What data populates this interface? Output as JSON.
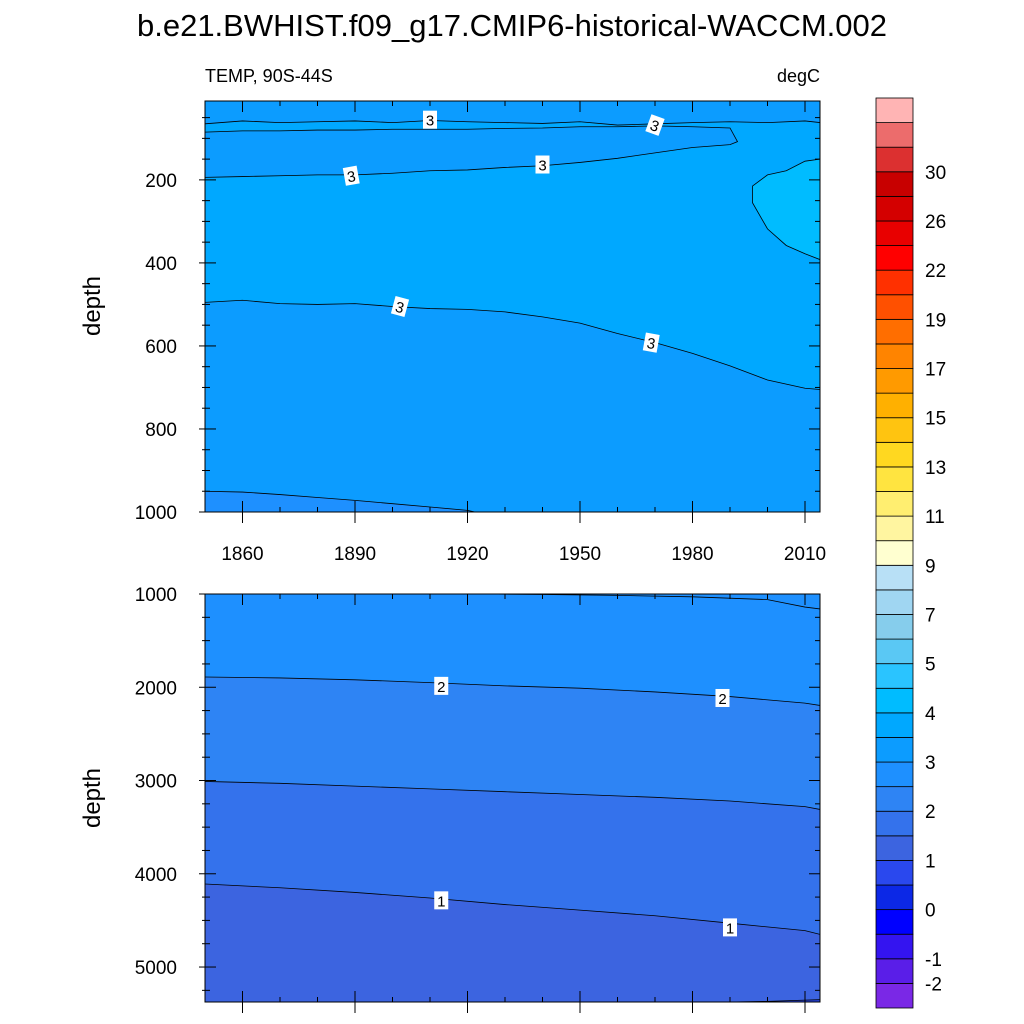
{
  "chart_data": {
    "type": "contour",
    "title": "b.e21.BWHIST.f09_g17.CMIP6-historical-WACCM.002",
    "subtitle_left": "TEMP, 90S-44S",
    "subtitle_right": "degC",
    "xlim": [
      1850,
      2014
    ],
    "x_ticks": [
      1860,
      1890,
      1920,
      1950,
      1980,
      2010
    ],
    "x_tick_labels": [
      "1860",
      "1890",
      "1920",
      "1950",
      "1980",
      "2010"
    ],
    "colorbar": {
      "levels": [
        -3,
        -2,
        -1,
        -0.5,
        0,
        0.5,
        1,
        1.5,
        2,
        2.5,
        3,
        3.5,
        4,
        4.5,
        5,
        6,
        7,
        8,
        9,
        10,
        11,
        12,
        13,
        14,
        15,
        16,
        17,
        18,
        19,
        20,
        22,
        24,
        26,
        28,
        30,
        32,
        34
      ],
      "labels": [
        "30",
        "26",
        "22",
        "19",
        "17",
        "15",
        "13",
        "11",
        "9",
        "7",
        "5",
        "4",
        "3",
        "2",
        "1",
        "0",
        "-1",
        "-2"
      ],
      "label_values": [
        30,
        26,
        22,
        19,
        17,
        15,
        13,
        11,
        9,
        7,
        5,
        4,
        3,
        2,
        1,
        0,
        -1,
        -2
      ],
      "colors": [
        "#7a28e6",
        "#5a1ee8",
        "#3414f0",
        "#0000ff",
        "#0c28e6",
        "#2a48ee",
        "#3c64e0",
        "#3472ec",
        "#2e84f4",
        "#1e90ff",
        "#0c9cff",
        "#00a8ff",
        "#00bcff",
        "#2ac4ff",
        "#5ac8f4",
        "#86cdec",
        "#a0d6f2",
        "#b8e0f6",
        "#ffffd0",
        "#fff5a0",
        "#ffee70",
        "#ffe440",
        "#ffd820",
        "#ffc410",
        "#ffb000",
        "#ff9a00",
        "#ff8400",
        "#ff6e00",
        "#ff5000",
        "#ff3000",
        "#ff0000",
        "#e80000",
        "#d40000",
        "#c80000",
        "#dc3030",
        "#ec6c6c",
        "#ffb4b4"
      ]
    },
    "panels": [
      {
        "ylabel": "depth",
        "ylim": [
          1000,
          10
        ],
        "y_ticks": [
          200,
          400,
          600,
          800,
          1000
        ],
        "y_tick_labels": [
          "200",
          "400",
          "600",
          "800",
          "1000"
        ],
        "regions": [
          {
            "color": "#0c9cff",
            "note": "background 2.5-3 degC"
          },
          {
            "color": "#00a8ff",
            "bounded_by": [
              "upper_3",
              "mid_3"
            ]
          },
          {
            "color": "#0c9cff",
            "bounded_by": [
              "tongue_3"
            ]
          },
          {
            "color": "#00bcff",
            "bounded_by": [
              "patch_35"
            ]
          },
          {
            "color": "#1e90ff",
            "below": "deep_25"
          }
        ],
        "contours": [
          {
            "id": "upper_3",
            "level": 3,
            "x": [
              1850,
              1860,
              1870,
              1880,
              1890,
              1900,
              1910,
              1920,
              1930,
              1940,
              1950,
              1960,
              1970,
              1980,
              1990,
              2000,
              2010,
              2014
            ],
            "y": [
              65,
              58,
              62,
              60,
              58,
              62,
              57,
              60,
              62,
              64,
              60,
              68,
              65,
              62,
              60,
              62,
              58,
              62
            ]
          },
          {
            "id": "tongue_3",
            "level": 3,
            "x": [
              1850,
              1860,
              1870,
              1880,
              1890,
              1900,
              1910,
              1920,
              1930,
              1940,
              1950,
              1960,
              1970,
              1980,
              1990,
              1992,
              1990,
              1980,
              1970,
              1960,
              1950,
              1940,
              1930,
              1920,
              1910,
              1900,
              1890,
              1880,
              1870,
              1860,
              1850
            ],
            "y": [
              85,
              82,
              82,
              80,
              80,
              78,
              78,
              78,
              76,
              75,
              72,
              72,
              70,
              72,
              75,
              108,
              115,
              122,
              135,
              148,
              158,
              166,
              170,
              176,
              178,
              184,
              188,
              188,
              190,
              192,
              194
            ]
          },
          {
            "id": "mid_3",
            "level": 3,
            "x": [
              1850,
              1860,
              1870,
              1880,
              1890,
              1900,
              1910,
              1920,
              1930,
              1940,
              1950,
              1960,
              1970,
              1980,
              1990,
              2000,
              2010,
              2014
            ],
            "y": [
              495,
              490,
              498,
              500,
              498,
              505,
              510,
              512,
              518,
              530,
              545,
              570,
              592,
              618,
              648,
              682,
              702,
              705
            ]
          },
          {
            "id": "patch_35",
            "level": 3.5,
            "x": [
              2014,
              2010,
              2005,
              2000,
              1996,
              1996,
              2000,
              2005,
              2010,
              2014
            ],
            "y": [
              150,
              155,
              178,
              188,
              215,
              255,
              318,
              358,
              378,
              392
            ]
          },
          {
            "id": "deep_25",
            "level": 2.5,
            "x": [
              1850,
              1860,
              1870,
              1880,
              1890,
              1900,
              1910,
              1920,
              1922
            ],
            "y": [
              950,
              952,
              958,
              965,
              972,
              980,
              988,
              996,
              1000
            ]
          }
        ],
        "labels": [
          {
            "text": "3",
            "x": 1910,
            "y": 55,
            "angle": 0
          },
          {
            "text": "3",
            "x": 1970,
            "y": 68,
            "angle": 20
          },
          {
            "text": "3",
            "x": 1889,
            "y": 190,
            "angle": -10
          },
          {
            "text": "3",
            "x": 1940,
            "y": 163,
            "angle": 0
          },
          {
            "text": "3",
            "x": 1902,
            "y": 505,
            "angle": 15
          },
          {
            "text": "3",
            "x": 1969,
            "y": 592,
            "angle": 10
          }
        ]
      },
      {
        "ylabel": "depth",
        "ylim": [
          5375,
          1000
        ],
        "y_ticks": [
          1000,
          2000,
          3000,
          4000,
          5000
        ],
        "y_tick_labels": [
          "1000",
          "2000",
          "3000",
          "4000",
          "5000"
        ],
        "regions": [
          {
            "color": "#1e90ff",
            "note": "background 2-2.5 degC"
          },
          {
            "color": "#2e84f4",
            "below": "c2"
          },
          {
            "color": "#3472ec",
            "below": "c15"
          },
          {
            "color": "#3c64e0",
            "below": "c1"
          },
          {
            "color": "#2a48ee",
            "below": "c05"
          }
        ],
        "contours": [
          {
            "id": "c25",
            "level": 2.5,
            "x": [
              1925,
              1940,
              1960,
              1980,
              2000,
              2010,
              2014
            ],
            "y": [
              1000,
              1005,
              1015,
              1030,
              1060,
              1140,
              1160
            ]
          },
          {
            "id": "c2",
            "level": 2,
            "x": [
              1850,
              1870,
              1890,
              1910,
              1930,
              1950,
              1970,
              1990,
              2010,
              2014
            ],
            "y": [
              1890,
              1900,
              1920,
              1950,
              1985,
              2010,
              2050,
              2100,
              2170,
              2195
            ]
          },
          {
            "id": "c15",
            "level": 1.5,
            "x": [
              1850,
              1870,
              1890,
              1910,
              1930,
              1950,
              1970,
              1990,
              2010,
              2014
            ],
            "y": [
              3010,
              3030,
              3060,
              3090,
              3120,
              3150,
              3180,
              3220,
              3280,
              3310
            ]
          },
          {
            "id": "c1",
            "level": 1,
            "x": [
              1850,
              1870,
              1890,
              1910,
              1930,
              1950,
              1970,
              1990,
              2010,
              2014
            ],
            "y": [
              4110,
              4150,
              4200,
              4260,
              4330,
              4390,
              4450,
              4530,
              4610,
              4650
            ]
          },
          {
            "id": "c05",
            "level": 0.5,
            "x": [
              1990,
              2000,
              2010,
              2014
            ],
            "y": [
              5375,
              5368,
              5355,
              5350
            ]
          }
        ],
        "labels": [
          {
            "text": "2",
            "x": 1913,
            "y": 1985,
            "angle": 0
          },
          {
            "text": "2",
            "x": 1988,
            "y": 2115,
            "angle": 0
          },
          {
            "text": "1",
            "x": 1913,
            "y": 4285,
            "angle": 0
          },
          {
            "text": "1",
            "x": 1990,
            "y": 4575,
            "angle": 0
          }
        ]
      }
    ]
  }
}
